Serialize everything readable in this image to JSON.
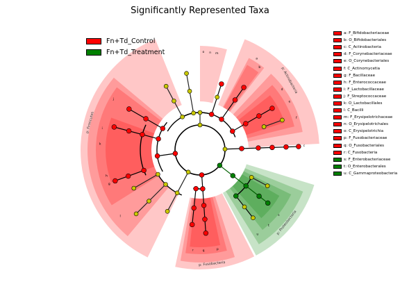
{
  "title": "Significantly Represented Taxa",
  "colors": {
    "control": "#ff0000",
    "treatment": "#008000",
    "nonsig": "#c8c800"
  },
  "legend": [
    {
      "label": "Fn+Td_Control",
      "color": "#ff0000"
    },
    {
      "label": "Fn+Td_Treatment",
      "color": "#008000"
    }
  ],
  "phyla": [
    {
      "label": "p: Actinobacteria"
    },
    {
      "label": "p: Firmicutes"
    },
    {
      "label": "p: Fusobacteria"
    },
    {
      "label": "p: Proteobacteria"
    }
  ],
  "clades": [
    {
      "letter": "a",
      "name": "F_Bifidobacteriaceae",
      "group": "control"
    },
    {
      "letter": "b",
      "name": "O_Bifidobacteriales",
      "group": "control"
    },
    {
      "letter": "c",
      "name": "C_Actinobacteria",
      "group": "control"
    },
    {
      "letter": "d",
      "name": "F_Corynebacteriaceae",
      "group": "control"
    },
    {
      "letter": "e",
      "name": "O_Corynebacteriales",
      "group": "control"
    },
    {
      "letter": "f",
      "name": "C_Actinomycetia",
      "group": "control"
    },
    {
      "letter": "g",
      "name": "F_Bacillaceae",
      "group": "control"
    },
    {
      "letter": "h",
      "name": "F_Enterococcaceae",
      "group": "control"
    },
    {
      "letter": "i",
      "name": "F_Lactobacillaceae",
      "group": "control"
    },
    {
      "letter": "j",
      "name": "F_Streptococcaceae",
      "group": "control"
    },
    {
      "letter": "k",
      "name": "O_Lactobacillales",
      "group": "control"
    },
    {
      "letter": "l",
      "name": "C_Bacilli",
      "group": "control"
    },
    {
      "letter": "m",
      "name": "F_Erysipelotrichaceae",
      "group": "control"
    },
    {
      "letter": "n",
      "name": "O_Erysipelotrichales",
      "group": "control"
    },
    {
      "letter": "o",
      "name": "C_Erysipelotrichia",
      "group": "control"
    },
    {
      "letter": "p",
      "name": "F_Fusobacteriaceae",
      "group": "control"
    },
    {
      "letter": "q",
      "name": "O_Fusobacteriales",
      "group": "control"
    },
    {
      "letter": "r",
      "name": "C_Fusobacteria",
      "group": "control"
    },
    {
      "letter": "s",
      "name": "F_Enterobacteriaceae",
      "group": "treatment"
    },
    {
      "letter": "t",
      "name": "O_Enterobacterales",
      "group": "treatment"
    },
    {
      "letter": "u",
      "name": "C_Gammaproteobacteria",
      "group": "treatment"
    }
  ]
}
